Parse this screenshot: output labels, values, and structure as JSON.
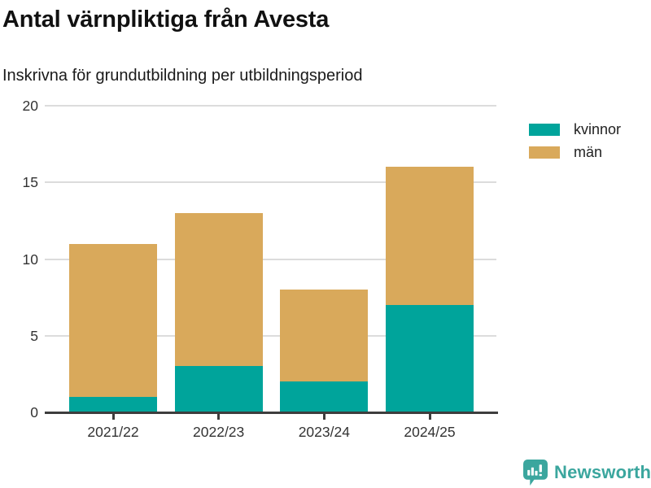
{
  "title": "Antal värnpliktiga från Avesta",
  "subtitle": "Inskrivna för grundutbildning per utbildningsperiod",
  "legend": {
    "items": [
      {
        "label": "kvinnor",
        "color": "#00A49B"
      },
      {
        "label": "män",
        "color": "#D9A95B"
      }
    ]
  },
  "footer": {
    "brand": "Newsworthy",
    "logo_icon": "bar-chart-speech-bubble-icon",
    "brand_color": "#3BA69E"
  },
  "colors": {
    "kvinnor": "#00A49B",
    "man": "#D9A95B",
    "gridline": "#dcdcdc",
    "axis": "#3d3d3d"
  },
  "chart_data": {
    "type": "bar",
    "stacked": true,
    "title": "Antal värnpliktiga från Avesta",
    "subtitle": "Inskrivna för grundutbildning per utbildningsperiod",
    "categories": [
      "2021/22",
      "2022/23",
      "2023/24",
      "2024/25"
    ],
    "series": [
      {
        "name": "kvinnor",
        "color": "#00A49B",
        "values": [
          1,
          3,
          2,
          7
        ]
      },
      {
        "name": "män",
        "color": "#D9A95B",
        "values": [
          10,
          10,
          6,
          9
        ]
      }
    ],
    "totals": [
      11,
      13,
      8,
      16
    ],
    "xlabel": "",
    "ylabel": "",
    "ylim": [
      0,
      20
    ],
    "yticks": [
      0,
      5,
      10,
      15,
      20
    ],
    "grid": true,
    "legend_position": "top-right"
  }
}
